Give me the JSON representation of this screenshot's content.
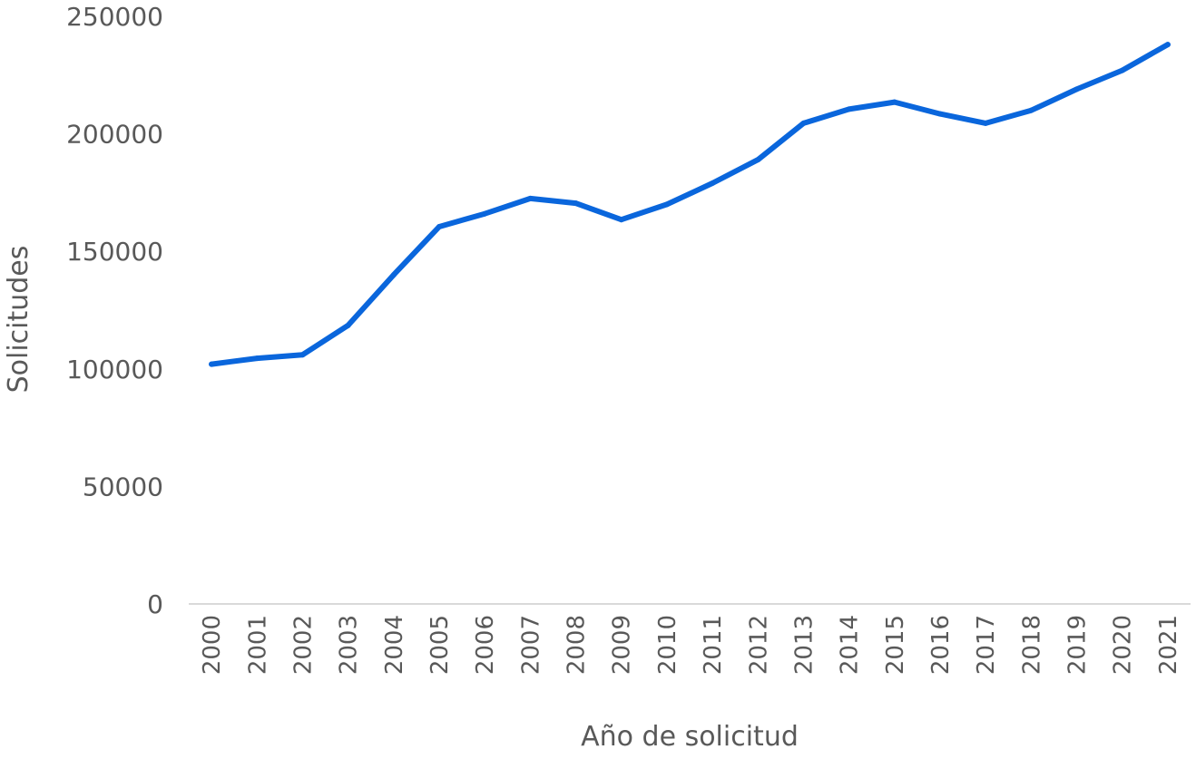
{
  "chart_data": {
    "type": "line",
    "title": "",
    "xlabel": "Año de solicitud",
    "ylabel": "Solicitudes",
    "categories": [
      "2000",
      "2001",
      "2002",
      "2003",
      "2004",
      "2005",
      "2006",
      "2007",
      "2008",
      "2009",
      "2010",
      "2011",
      "2012",
      "2013",
      "2014",
      "2015",
      "2016",
      "2017",
      "2018",
      "2019",
      "2020",
      "2021"
    ],
    "series": [
      {
        "values": [
          102000,
          104500,
          106000,
          118500,
          140000,
          160500,
          166000,
          172500,
          170500,
          163500,
          170000,
          179000,
          189000,
          204500,
          210500,
          213500,
          208500,
          204500,
          210000,
          219000,
          227000,
          238000
        ]
      }
    ],
    "ylim": [
      0,
      250000
    ],
    "yticks": [
      "0",
      "50000",
      "100000",
      "150000",
      "200000",
      "250000"
    ],
    "grid": false,
    "legend": "none",
    "colors": {
      "line": "#0A66DC",
      "axis": "#D9D9D9",
      "text": "#595959"
    }
  }
}
